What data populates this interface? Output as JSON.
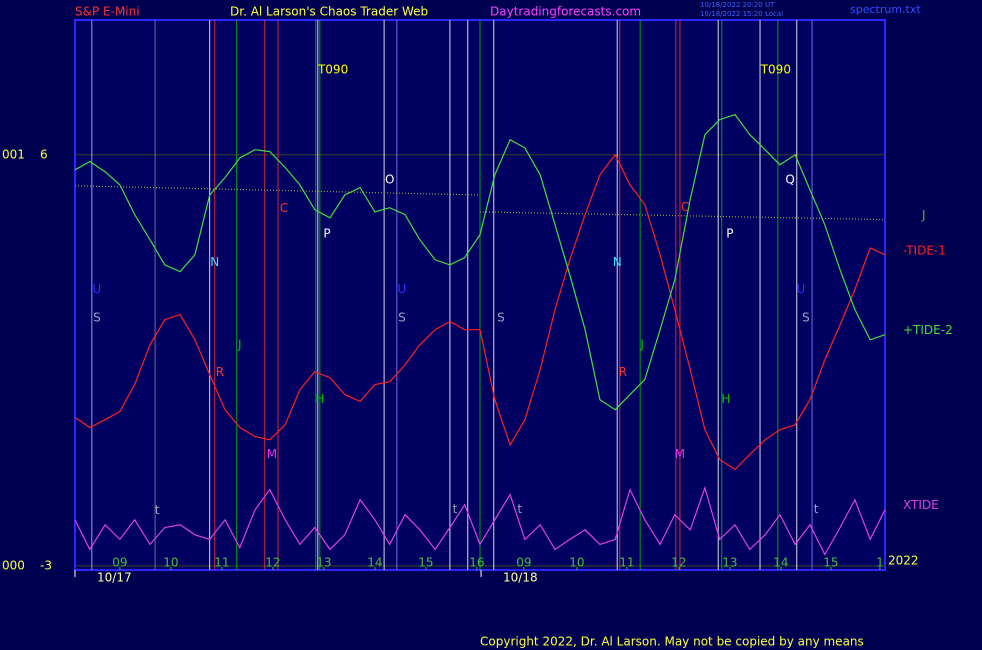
{
  "chart_data": {
    "type": "line",
    "header": {
      "left": "S&P E-Mini",
      "center": "Dr. Al Larson's Chaos Trader Web",
      "site": "Daytradingforecasts.com",
      "file": "spectrum.txt",
      "stamps": [
        "10/18/2022 20:20 UT",
        "10/18/2022 15:20 Local"
      ]
    },
    "footer": "Copyright 2022, Dr. Al Larson. May not be copied by any means",
    "year": "2022",
    "xlim": [
      -0.88,
      15.0
    ],
    "ylim": [
      -3.09,
      8.95
    ],
    "xticks": [
      {
        "value": 0,
        "label": "09"
      },
      {
        "value": 1,
        "label": "10"
      },
      {
        "value": 2,
        "label": "11"
      },
      {
        "value": 3,
        "label": "12"
      },
      {
        "value": 4,
        "label": "13"
      },
      {
        "value": 5,
        "label": "14"
      },
      {
        "value": 6,
        "label": "15"
      },
      {
        "value": 7,
        "label": "16"
      },
      {
        "value": 7.92,
        "label": "09"
      },
      {
        "value": 8.96,
        "label": "10"
      },
      {
        "value": 9.94,
        "label": "11"
      },
      {
        "value": 10.96,
        "label": "12"
      },
      {
        "value": 11.96,
        "label": "13"
      },
      {
        "value": 12.96,
        "label": "14"
      },
      {
        "value": 13.94,
        "label": "15"
      },
      {
        "value": 14.9,
        "label": "1"
      }
    ],
    "date_ticks": [
      {
        "value": -0.88,
        "label": "10/17"
      },
      {
        "value": 7.08,
        "label": "10/18"
      }
    ],
    "yticks": [
      {
        "value": 6,
        "label": "6"
      },
      -3
    ],
    "y_left_labels": [
      {
        "value": 6,
        "label": "001"
      },
      {
        "value": -3,
        "label": "000"
      }
    ],
    "events": {
      "x": [
        -0.55,
        0.69,
        1.76,
        1.86,
        2.29,
        2.84,
        3.1,
        3.84,
        3.88,
        3.92,
        5.18,
        5.43,
        6.47,
        6.82,
        7.06,
        7.33,
        9.75,
        9.8,
        10.2,
        10.9,
        10.98,
        11.73,
        11.8,
        12.55,
        12.9,
        13.27,
        13.57
      ],
      "colors": [
        "#a0c0ff",
        "#8080a0",
        "#ffffff",
        "#ff3030",
        "#00c000",
        "#ff3030",
        "#ff3030",
        "#00c000",
        "#ffffff",
        "#00c000",
        "#ffffff",
        "#8080ff",
        "#ffffff",
        "#ffffff",
        "#00c000",
        "#ffffff",
        "#ffffff",
        "#ff3030",
        "#00c000",
        "#ff3030",
        "#ff3030",
        "#ffffff",
        "#00c000",
        "#ffffff",
        "#00c000",
        "#ffffff",
        "#8080ff"
      ]
    },
    "annotations": [
      {
        "text": "U",
        "x": -0.45,
        "y": 3.05,
        "color": "#3030ff"
      },
      {
        "text": "S",
        "x": -0.45,
        "y": 2.43,
        "color": "#a0a0c0"
      },
      {
        "text": "N",
        "x": 1.86,
        "y": 3.64,
        "color": "#40e0ff"
      },
      {
        "text": "R",
        "x": 1.96,
        "y": 1.23,
        "color": "#ff3030"
      },
      {
        "text": "J",
        "x": 2.35,
        "y": 1.84,
        "color": "#00c000"
      },
      {
        "text": "C",
        "x": 3.22,
        "y": 4.82,
        "color": "#ff3030"
      },
      {
        "text": "M",
        "x": 2.98,
        "y": -0.56,
        "color": "#e030e0"
      },
      {
        "text": "T090",
        "x": 4.18,
        "y": 7.86,
        "color": "#ffff00"
      },
      {
        "text": "P",
        "x": 4.06,
        "y": 4.27,
        "color": "#ffffff"
      },
      {
        "text": "H",
        "x": 3.92,
        "y": 0.64,
        "color": "#00c000"
      },
      {
        "text": "O",
        "x": 5.29,
        "y": 5.45,
        "color": "#ffffff"
      },
      {
        "text": "U",
        "x": 5.53,
        "y": 3.05,
        "color": "#3030ff"
      },
      {
        "text": "S",
        "x": 5.53,
        "y": 2.43,
        "color": "#a0a0c0"
      },
      {
        "text": "S",
        "x": 7.47,
        "y": 2.43,
        "color": "#a0a0c0"
      },
      {
        "text": "t",
        "x": 0.73,
        "y": -1.79,
        "color": "#a0a0c0"
      },
      {
        "text": "t",
        "x": 6.57,
        "y": -1.77,
        "color": "#a0a0c0"
      },
      {
        "text": "t",
        "x": 7.84,
        "y": -1.77,
        "color": "#a0a0c0"
      },
      {
        "text": "t",
        "x": 13.65,
        "y": -1.77,
        "color": "#a0a0c0"
      },
      {
        "text": "N",
        "x": 9.75,
        "y": 3.64,
        "color": "#40e0ff"
      },
      {
        "text": "R",
        "x": 9.86,
        "y": 1.23,
        "color": "#ff3030"
      },
      {
        "text": "J",
        "x": 10.24,
        "y": 1.84,
        "color": "#00c000"
      },
      {
        "text": "C",
        "x": 11.08,
        "y": 4.84,
        "color": "#ff3030"
      },
      {
        "text": "M",
        "x": 10.98,
        "y": -0.56,
        "color": "#e030e0"
      },
      {
        "text": "H",
        "x": 11.88,
        "y": 0.64,
        "color": "#00c000"
      },
      {
        "text": "P",
        "x": 11.96,
        "y": 4.27,
        "color": "#ffffff"
      },
      {
        "text": "T090",
        "x": 12.86,
        "y": 7.86,
        "color": "#ffff00"
      },
      {
        "text": "Q",
        "x": 13.14,
        "y": 5.45,
        "color": "#ffffff"
      },
      {
        "text": "U",
        "x": 13.35,
        "y": 3.05,
        "color": "#3030ff"
      },
      {
        "text": "S",
        "x": 13.45,
        "y": 2.43,
        "color": "#a0a0c0"
      }
    ],
    "series": [
      {
        "name": "J",
        "color": "#a0a040",
        "dashed": true,
        "x": [
          -0.88,
          7.06,
          7.06,
          7.06,
          15.0
        ],
        "values": [
          5.32,
          5.12,
          null,
          4.75,
          4.58
        ]
      },
      {
        "name": "-TIDE-1",
        "color": "#ff2020",
        "dashed": false,
        "x": [
          -0.88,
          -0.59,
          -0.29,
          0.0,
          0.29,
          0.59,
          0.88,
          1.18,
          1.47,
          1.76,
          2.06,
          2.35,
          2.65,
          2.94,
          3.24,
          3.53,
          3.82,
          4.12,
          4.41,
          4.71,
          5.0,
          5.29,
          5.59,
          5.88,
          6.18,
          6.47,
          6.76,
          7.06,
          7.35,
          7.65,
          7.94,
          8.24,
          8.53,
          8.82,
          9.12,
          9.41,
          9.71,
          10.0,
          10.29,
          10.59,
          10.88,
          11.18,
          11.47,
          11.76,
          12.06,
          12.35,
          12.65,
          12.94,
          13.24,
          13.53,
          13.82,
          14.12,
          14.41,
          14.71,
          15.0
        ],
        "values": [
          0.25,
          0.03,
          0.2,
          0.38,
          0.97,
          1.84,
          2.39,
          2.5,
          1.95,
          1.19,
          0.42,
          0.03,
          -0.17,
          -0.24,
          0.09,
          0.86,
          1.25,
          1.12,
          0.75,
          0.6,
          0.97,
          1.03,
          1.4,
          1.84,
          2.17,
          2.35,
          2.17,
          2.17,
          0.64,
          -0.35,
          0.2,
          1.3,
          2.61,
          3.7,
          4.69,
          5.56,
          6.0,
          5.34,
          4.91,
          3.81,
          2.61,
          1.3,
          -0.02,
          -0.67,
          -0.89,
          -0.56,
          -0.24,
          -0.02,
          0.09,
          0.64,
          1.51,
          2.28,
          3.05,
          3.96,
          3.81
        ]
      },
      {
        "name": "+TIDE-2",
        "color": "#40e040",
        "dashed": false,
        "x": [
          -0.88,
          -0.59,
          -0.29,
          0.0,
          0.29,
          0.59,
          0.88,
          1.18,
          1.47,
          1.76,
          2.06,
          2.35,
          2.65,
          2.94,
          3.24,
          3.53,
          3.82,
          4.12,
          4.41,
          4.71,
          5.0,
          5.29,
          5.59,
          5.88,
          6.18,
          6.47,
          6.76,
          7.06,
          7.35,
          7.65,
          7.94,
          8.24,
          8.53,
          8.82,
          9.12,
          9.41,
          9.71,
          10.0,
          10.29,
          10.59,
          10.88,
          11.18,
          11.47,
          11.76,
          12.06,
          12.35,
          12.65,
          12.94,
          13.24,
          13.53,
          13.82,
          14.12,
          14.41,
          14.71,
          15.0
        ],
        "values": [
          5.67,
          5.85,
          5.63,
          5.34,
          4.69,
          4.14,
          3.59,
          3.44,
          3.81,
          5.12,
          5.5,
          5.93,
          6.11,
          6.07,
          5.72,
          5.34,
          4.8,
          4.62,
          5.12,
          5.28,
          4.75,
          4.84,
          4.69,
          4.14,
          3.7,
          3.59,
          3.75,
          4.25,
          5.56,
          6.33,
          6.15,
          5.56,
          4.47,
          3.37,
          2.17,
          0.64,
          0.42,
          0.75,
          1.08,
          2.17,
          3.26,
          5.02,
          6.44,
          6.77,
          6.88,
          6.44,
          6.11,
          5.78,
          6.0,
          5.23,
          4.47,
          3.48,
          2.61,
          1.95,
          2.06
        ]
      },
      {
        "name": "XTIDE",
        "color": "#e040e0",
        "dashed": false,
        "x": [
          -0.88,
          -0.59,
          -0.29,
          0.0,
          0.29,
          0.59,
          0.88,
          1.18,
          1.47,
          1.76,
          2.06,
          2.35,
          2.65,
          2.94,
          3.24,
          3.53,
          3.82,
          4.12,
          4.41,
          4.71,
          5.0,
          5.29,
          5.59,
          5.88,
          6.18,
          6.47,
          6.76,
          7.06,
          7.35,
          7.65,
          7.94,
          8.24,
          8.53,
          8.82,
          9.12,
          9.41,
          9.71,
          10.0,
          10.29,
          10.59,
          10.88,
          11.18,
          11.47,
          11.76,
          12.06,
          12.35,
          12.65,
          12.94,
          13.24,
          13.53,
          13.82,
          14.12,
          14.41,
          14.71,
          15.0
        ],
        "values": [
          -1.99,
          -2.64,
          -2.1,
          -2.42,
          -1.99,
          -2.53,
          -2.16,
          -2.1,
          -2.32,
          -2.42,
          -1.99,
          -2.6,
          -1.77,
          -1.33,
          -1.99,
          -2.53,
          -2.16,
          -2.64,
          -2.32,
          -1.55,
          -1.99,
          -2.53,
          -1.88,
          -2.21,
          -2.64,
          -2.16,
          -1.66,
          -2.53,
          -1.99,
          -1.44,
          -2.42,
          -2.1,
          -2.64,
          -2.42,
          -2.21,
          -2.53,
          -2.42,
          -1.33,
          -1.99,
          -2.53,
          -1.88,
          -2.21,
          -1.29,
          -2.42,
          -2.1,
          -2.64,
          -2.32,
          -1.88,
          -2.53,
          -2.1,
          -2.75,
          -2.16,
          -1.55,
          -2.42,
          -1.77
        ]
      }
    ],
    "grid": true
  }
}
